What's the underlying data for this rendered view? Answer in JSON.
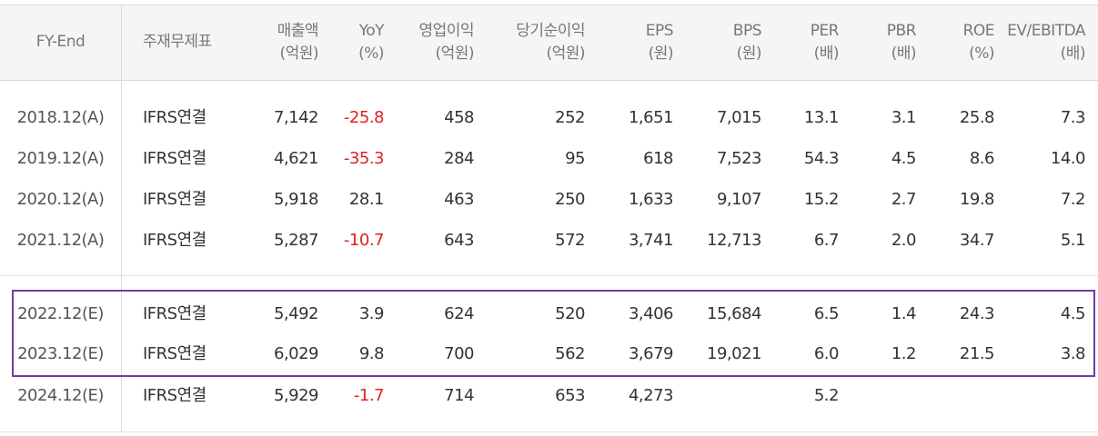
{
  "headers": {
    "fy_end": "FY-End",
    "item": "주재무제표",
    "sales": {
      "l1": "매출액",
      "l2": "(억원)"
    },
    "yoy": {
      "l1": "YoY",
      "l2": "(%)"
    },
    "op_income": {
      "l1": "영업이익",
      "l2": "(억원)"
    },
    "net_income": {
      "l1": "당기순이익",
      "l2": "(억원)"
    },
    "eps": {
      "l1": "EPS",
      "l2": "(원)"
    },
    "bps": {
      "l1": "BPS",
      "l2": "(원)"
    },
    "per": {
      "l1": "PER",
      "l2": "(배)"
    },
    "pbr": {
      "l1": "PBR",
      "l2": "(배)"
    },
    "roe": {
      "l1": "ROE",
      "l2": "(%)"
    },
    "ev_ebitda": {
      "l1": "EV/EBITDA",
      "l2": "(배)"
    }
  },
  "rows": [
    {
      "year": "2018.12(A)",
      "item": "IFRS연결",
      "sales": "7,142",
      "yoy": "-25.8",
      "op_income": "458",
      "net_income": "252",
      "eps": "1,651",
      "bps": "7,015",
      "per": "13.1",
      "pbr": "3.1",
      "roe": "25.8",
      "ev_ebitda": "7.3"
    },
    {
      "year": "2019.12(A)",
      "item": "IFRS연결",
      "sales": "4,621",
      "yoy": "-35.3",
      "op_income": "284",
      "net_income": "95",
      "eps": "618",
      "bps": "7,523",
      "per": "54.3",
      "pbr": "4.5",
      "roe": "8.6",
      "ev_ebitda": "14.0"
    },
    {
      "year": "2020.12(A)",
      "item": "IFRS연결",
      "sales": "5,918",
      "yoy": "28.1",
      "op_income": "463",
      "net_income": "250",
      "eps": "1,633",
      "bps": "9,107",
      "per": "15.2",
      "pbr": "2.7",
      "roe": "19.8",
      "ev_ebitda": "7.2"
    },
    {
      "year": "2021.12(A)",
      "item": "IFRS연결",
      "sales": "5,287",
      "yoy": "-10.7",
      "op_income": "643",
      "net_income": "572",
      "eps": "3,741",
      "bps": "12,713",
      "per": "6.7",
      "pbr": "2.0",
      "roe": "34.7",
      "ev_ebitda": "5.1"
    },
    {
      "year": "2022.12(E)",
      "item": "IFRS연결",
      "sales": "5,492",
      "yoy": "3.9",
      "op_income": "624",
      "net_income": "520",
      "eps": "3,406",
      "bps": "15,684",
      "per": "6.5",
      "pbr": "1.4",
      "roe": "24.3",
      "ev_ebitda": "4.5"
    },
    {
      "year": "2023.12(E)",
      "item": "IFRS연결",
      "sales": "6,029",
      "yoy": "9.8",
      "op_income": "700",
      "net_income": "562",
      "eps": "3,679",
      "bps": "19,021",
      "per": "6.0",
      "pbr": "1.2",
      "roe": "21.5",
      "ev_ebitda": "3.8"
    },
    {
      "year": "2024.12(E)",
      "item": "IFRS연결",
      "sales": "5,929",
      "yoy": "-1.7",
      "op_income": "714",
      "net_income": "653",
      "eps": "4,273",
      "bps": "",
      "per": "5.2",
      "pbr": "",
      "roe": "",
      "ev_ebitda": ""
    }
  ],
  "colors": {
    "negative": "#e02020",
    "highlight_border": "#6e3f9e"
  }
}
